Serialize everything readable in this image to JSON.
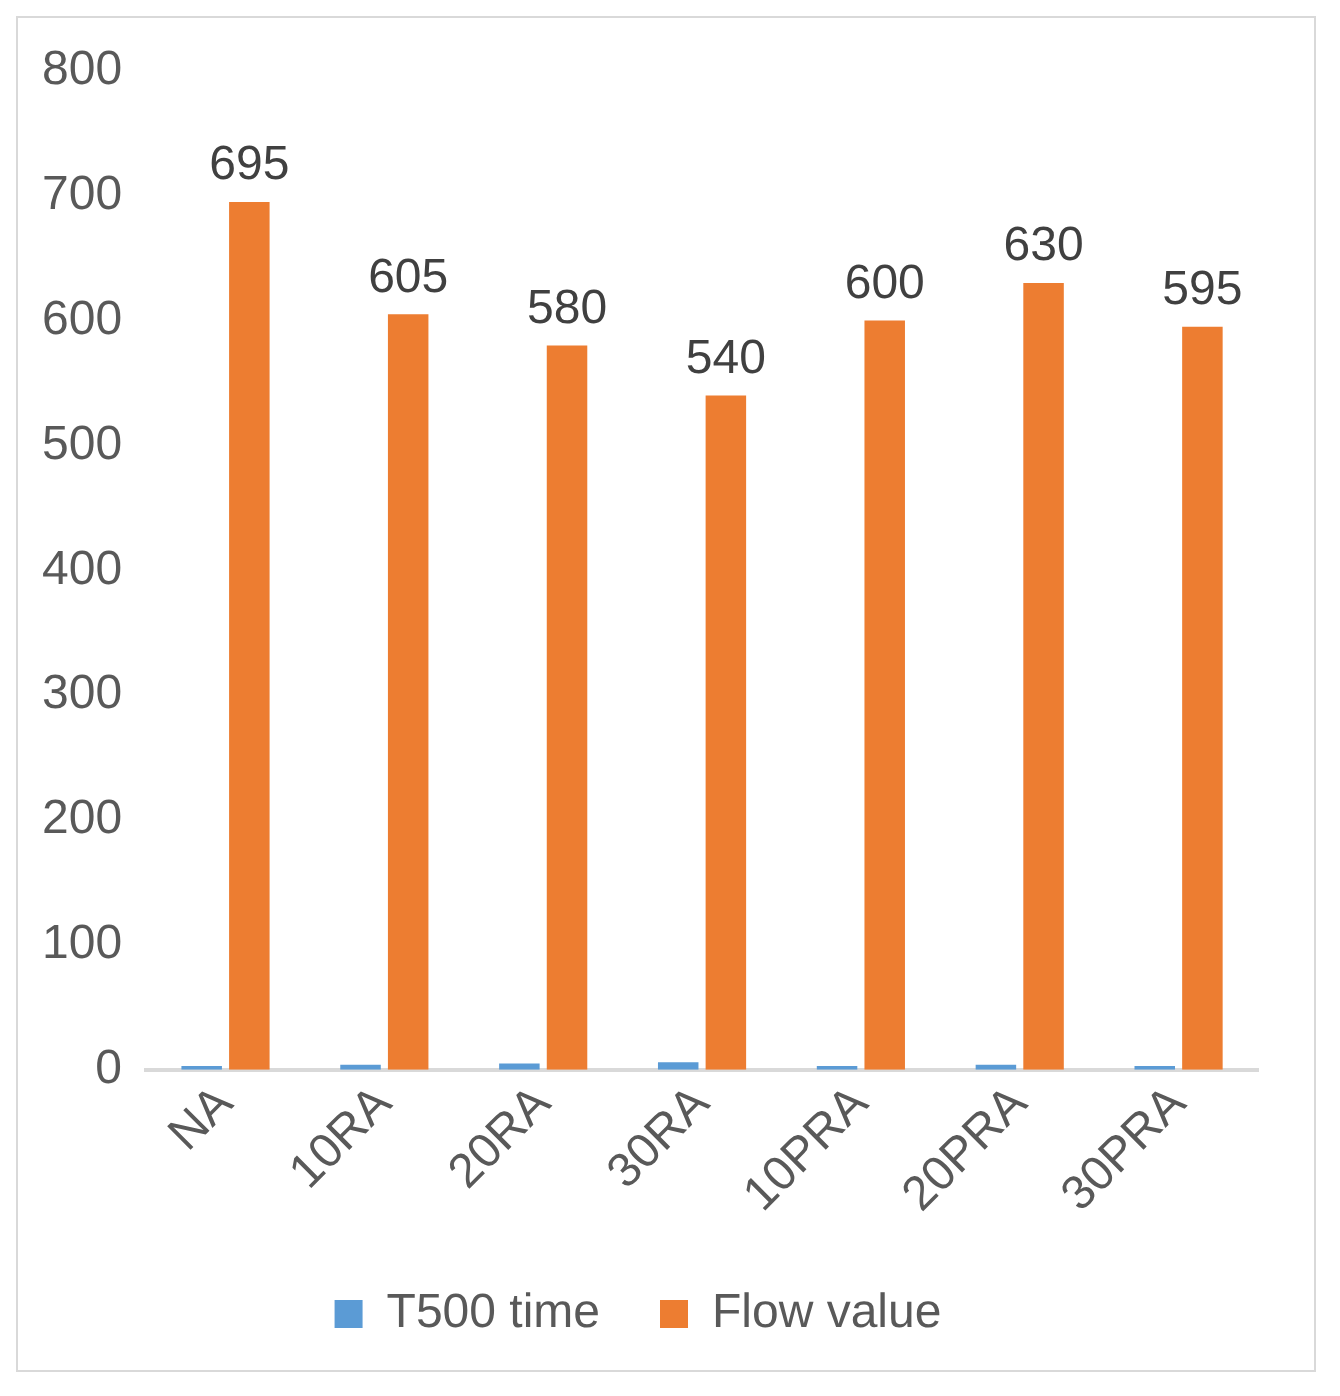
{
  "chart_data": {
    "type": "bar",
    "categories": [
      "NA",
      "10RA",
      "20RA",
      "30RA",
      "10PRA",
      "20PRA",
      "30PRA"
    ],
    "series": [
      {
        "name": "T500 time",
        "color": "#5b9bd5",
        "values": [
          3,
          4,
          5,
          6,
          3,
          4,
          3
        ]
      },
      {
        "name": "Flow value",
        "color": "#ed7d31",
        "values": [
          695,
          605,
          580,
          540,
          600,
          630,
          595
        ],
        "value_labels": [
          "695",
          "605",
          "580",
          "540",
          "600",
          "630",
          "595"
        ]
      }
    ],
    "ylim": [
      0,
      800
    ],
    "yticks": [
      0,
      100,
      200,
      300,
      400,
      500,
      600,
      700,
      800
    ],
    "grid": false,
    "legend": "bottom"
  }
}
